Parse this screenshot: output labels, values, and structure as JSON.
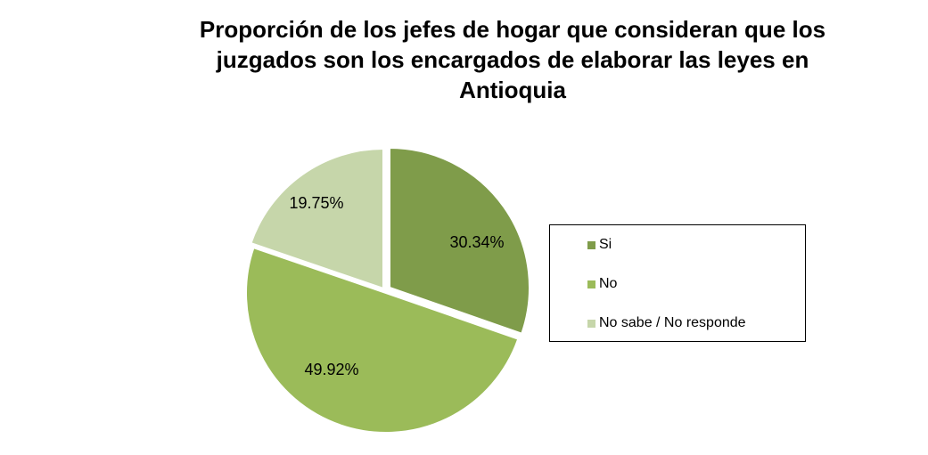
{
  "chart_data": {
    "type": "pie",
    "title": "Proporción de los jefes de hogar que  consideran  que los\njuzgados son los encargados de elaborar  las leyes en\nAntioquia",
    "categories": [
      "Si",
      "No",
      "No sabe / No responde"
    ],
    "values": [
      30.34,
      49.92,
      19.75
    ],
    "labels": [
      "30.34%",
      "49.92%",
      "19.75%"
    ],
    "colors": [
      "#7F9C4A",
      "#9BBB59",
      "#C6D6AA"
    ],
    "exploded": true,
    "legend_position": "right"
  }
}
